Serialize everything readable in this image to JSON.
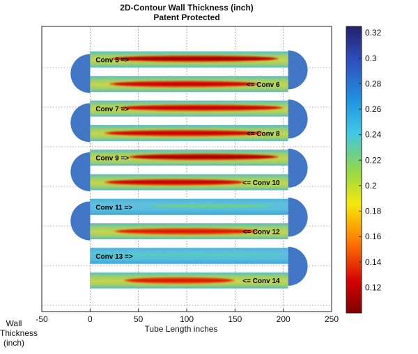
{
  "chart_data": {
    "type": "heatmap",
    "title": "2D-Contour Wall Thickness (inch)",
    "subtitle": "Patent Protected",
    "xlabel": "Tube Length inches",
    "xlim": [
      -50,
      250
    ],
    "xticks": [
      "-50",
      "0",
      "50",
      "100",
      "150",
      "200",
      "250"
    ],
    "grid": true,
    "colorbar": {
      "label_lines": [
        "Wall",
        "Thickness",
        "(inch)"
      ],
      "range": [
        0.1,
        0.325
      ],
      "ticks": [
        "0.32",
        "0.3",
        "0.28",
        "0.26",
        "0.24",
        "0.22",
        "0.2",
        "0.18",
        "0.16",
        "0.14",
        "0.12"
      ],
      "colormap": "jet"
    },
    "tubes": [
      {
        "label": "Conv 5 =>",
        "dominant_thickness": 0.2,
        "thin_band_min": 0.11,
        "thin_band_x": [
          22,
          195
        ]
      },
      {
        "label": "<= Conv 6",
        "dominant_thickness": 0.2,
        "thin_band_min": 0.12,
        "thin_band_x": [
          20,
          175
        ]
      },
      {
        "label": "Conv 7 =>",
        "dominant_thickness": 0.2,
        "thin_band_min": 0.12,
        "thin_band_x": [
          30,
          200
        ]
      },
      {
        "label": "<= Conv 8",
        "dominant_thickness": 0.2,
        "thin_band_min": 0.12,
        "thin_band_x": [
          15,
          180
        ]
      },
      {
        "label": "Conv 9 =>",
        "dominant_thickness": 0.2,
        "thin_band_min": 0.11,
        "thin_band_x": [
          40,
          195
        ]
      },
      {
        "label": "<= Conv 10",
        "dominant_thickness": 0.2,
        "thin_band_min": 0.12,
        "thin_band_x": [
          15,
          160
        ]
      },
      {
        "label": "Conv 11 =>",
        "dominant_thickness": 0.24,
        "thin_band_min": 0.22,
        "thin_band_x": [
          60,
          190
        ]
      },
      {
        "label": "<= Conv 12",
        "dominant_thickness": 0.2,
        "thin_band_min": 0.13,
        "thin_band_x": [
          25,
          175
        ]
      },
      {
        "label": "Conv 13 =>",
        "dominant_thickness": 0.24,
        "thin_band_min": 0.23,
        "thin_band_x": [
          0,
          200
        ]
      },
      {
        "label": "<= Conv 14",
        "dominant_thickness": 0.2,
        "thin_band_min": 0.13,
        "thin_band_x": [
          35,
          150
        ]
      }
    ]
  }
}
